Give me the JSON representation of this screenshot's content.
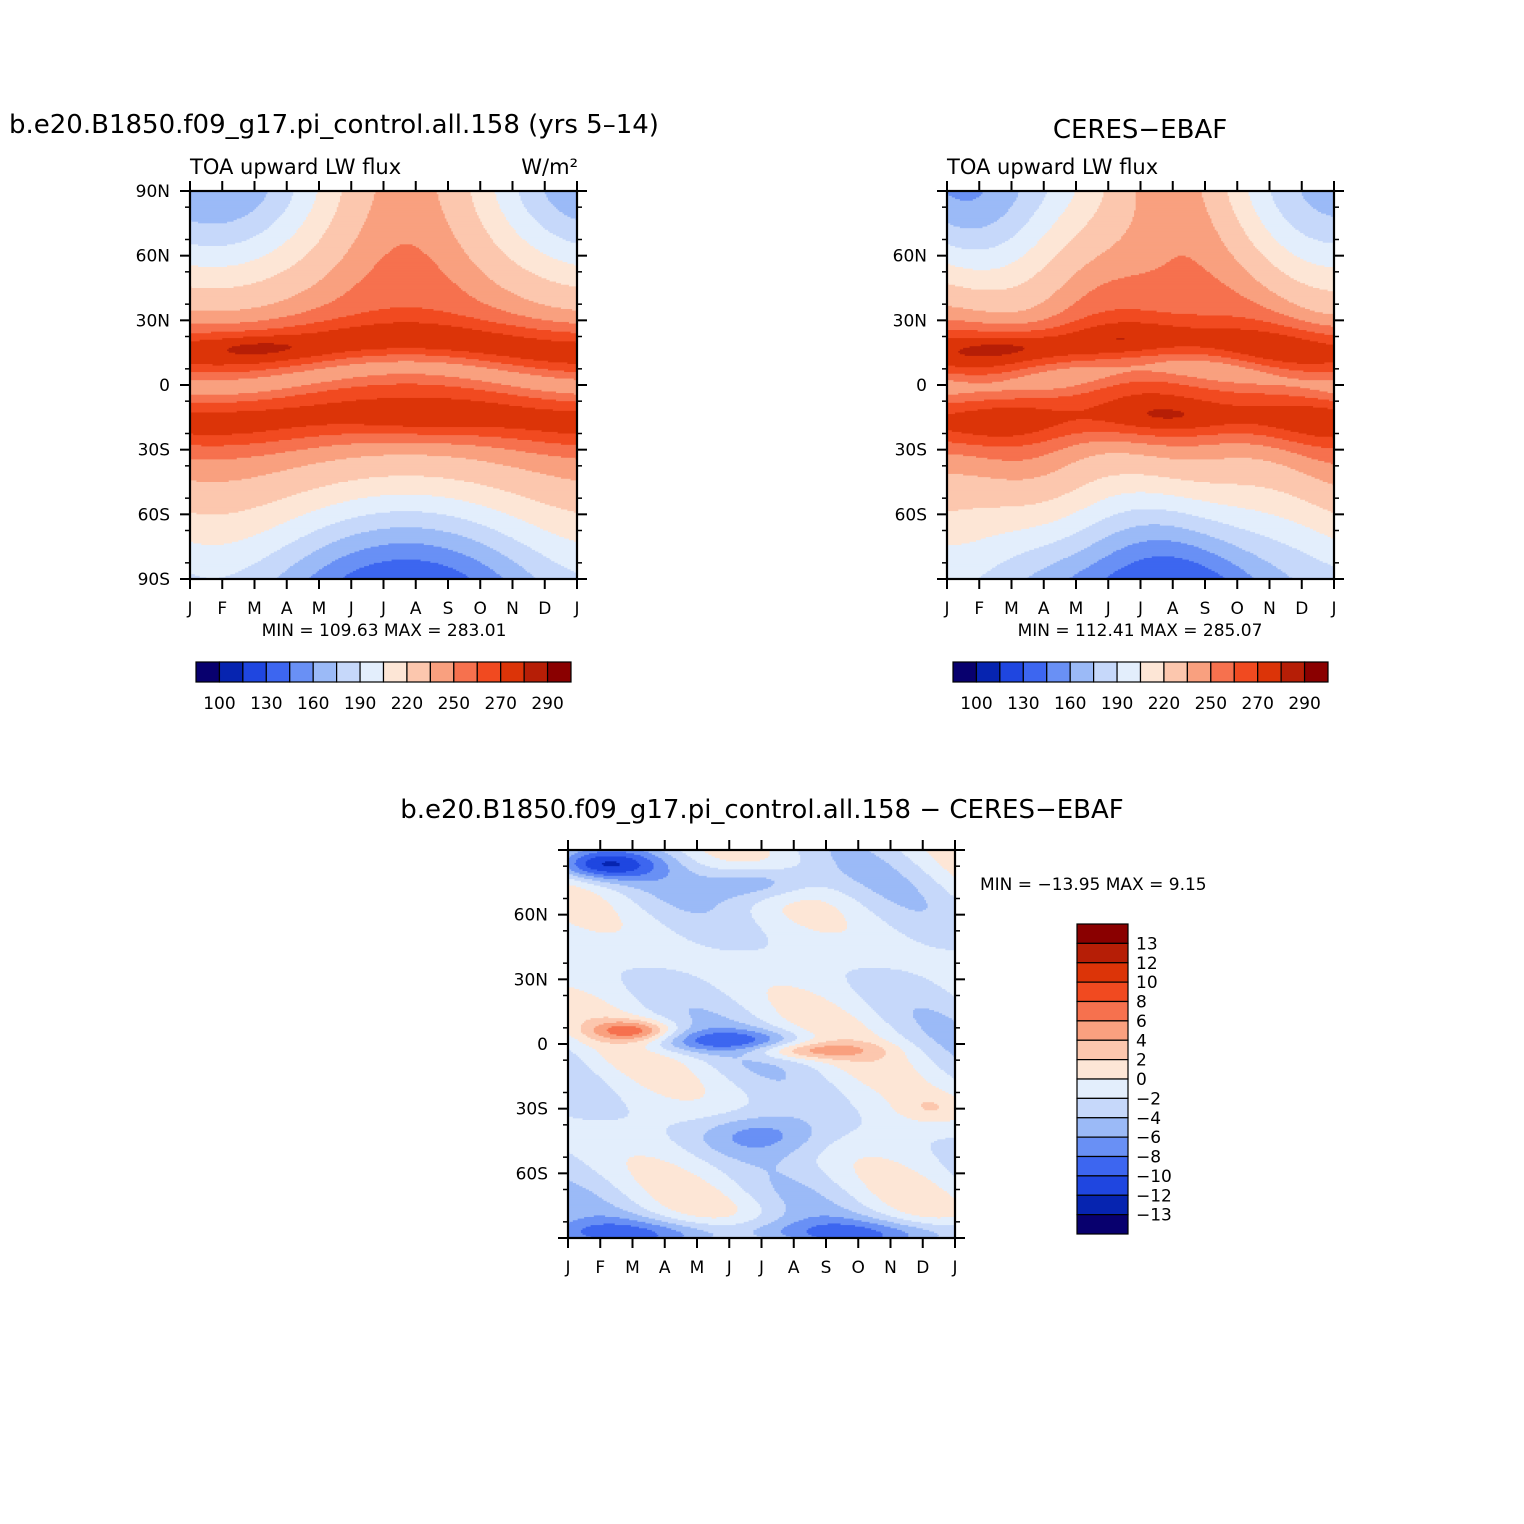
{
  "figure": {
    "background": "#ffffff"
  },
  "colormaps": {
    "abs": [
      "#08006e",
      "#0624b0",
      "#1f46e0",
      "#3d66f0",
      "#6990f5",
      "#9bbaf7",
      "#c6d8fa",
      "#e3eefc",
      "#fde6d6",
      "#fcc7ae",
      "#f9a07f",
      "#f6714e",
      "#f14a20",
      "#dc3408",
      "#b61e06",
      "#8a0000"
    ],
    "diff": [
      "#08006e",
      "#0624b0",
      "#1f46e0",
      "#3d66f0",
      "#6990f5",
      "#9bbaf7",
      "#c6d8fa",
      "#e3eefc",
      "#fde6d6",
      "#fcc7ae",
      "#f9a07f",
      "#f6714e",
      "#f14a20",
      "#dc3408",
      "#b61e06",
      "#8a0000"
    ]
  },
  "chart_data": [
    {
      "type": "heatmap",
      "id": "model",
      "title": "b.e20.B1850.f09_g17.pi_control.all.158 (yrs 5–14)",
      "subtitle_left": "TOA upward LW flux",
      "units": "W/m²",
      "x_ticks": [
        "J",
        "F",
        "M",
        "A",
        "M",
        "J",
        "J",
        "A",
        "S",
        "O",
        "N",
        "D",
        "J"
      ],
      "y_ticks": [
        "90N",
        "60N",
        "30N",
        "0",
        "30S",
        "60S",
        "90S"
      ],
      "xlim": [
        0,
        12
      ],
      "ylim": [
        -90,
        90
      ],
      "stats": "MIN = 109.63 MAX = 283.01",
      "min": 109.63,
      "max": 283.01,
      "colorbar_labels": [
        "100",
        "130",
        "160",
        "190",
        "220",
        "250",
        "270",
        "290"
      ]
    },
    {
      "type": "heatmap",
      "id": "obs",
      "title": "CERES−EBAF",
      "subtitle_left": "TOA upward LW flux",
      "x_ticks": [
        "J",
        "F",
        "M",
        "A",
        "M",
        "J",
        "J",
        "A",
        "S",
        "O",
        "N",
        "D",
        "J"
      ],
      "y_ticks": [
        "",
        "60N",
        "30N",
        "0",
        "30S",
        "60S",
        ""
      ],
      "xlim": [
        0,
        12
      ],
      "ylim": [
        -90,
        90
      ],
      "stats": "MIN = 112.41 MAX = 285.07",
      "min": 112.41,
      "max": 285.07,
      "colorbar_labels": [
        "100",
        "130",
        "160",
        "190",
        "220",
        "250",
        "270",
        "290"
      ]
    },
    {
      "type": "heatmap",
      "id": "diff",
      "title": "b.e20.B1850.f09_g17.pi_control.all.158 − CERES−EBAF",
      "x_ticks": [
        "J",
        "F",
        "M",
        "A",
        "M",
        "J",
        "J",
        "A",
        "S",
        "O",
        "N",
        "D",
        "J"
      ],
      "y_ticks": [
        "",
        "60N",
        "30N",
        "0",
        "30S",
        "60S",
        ""
      ],
      "xlim": [
        0,
        12
      ],
      "ylim": [
        -90,
        90
      ],
      "stats": "MIN = −13.95 MAX =    9.15",
      "min": -13.95,
      "max": 9.15,
      "colorbar_labels": [
        "13",
        "12",
        "10",
        "8",
        "6",
        "4",
        "2",
        "0",
        "−2",
        "−4",
        "−6",
        "−8",
        "−10",
        "−12",
        "−13"
      ]
    }
  ]
}
